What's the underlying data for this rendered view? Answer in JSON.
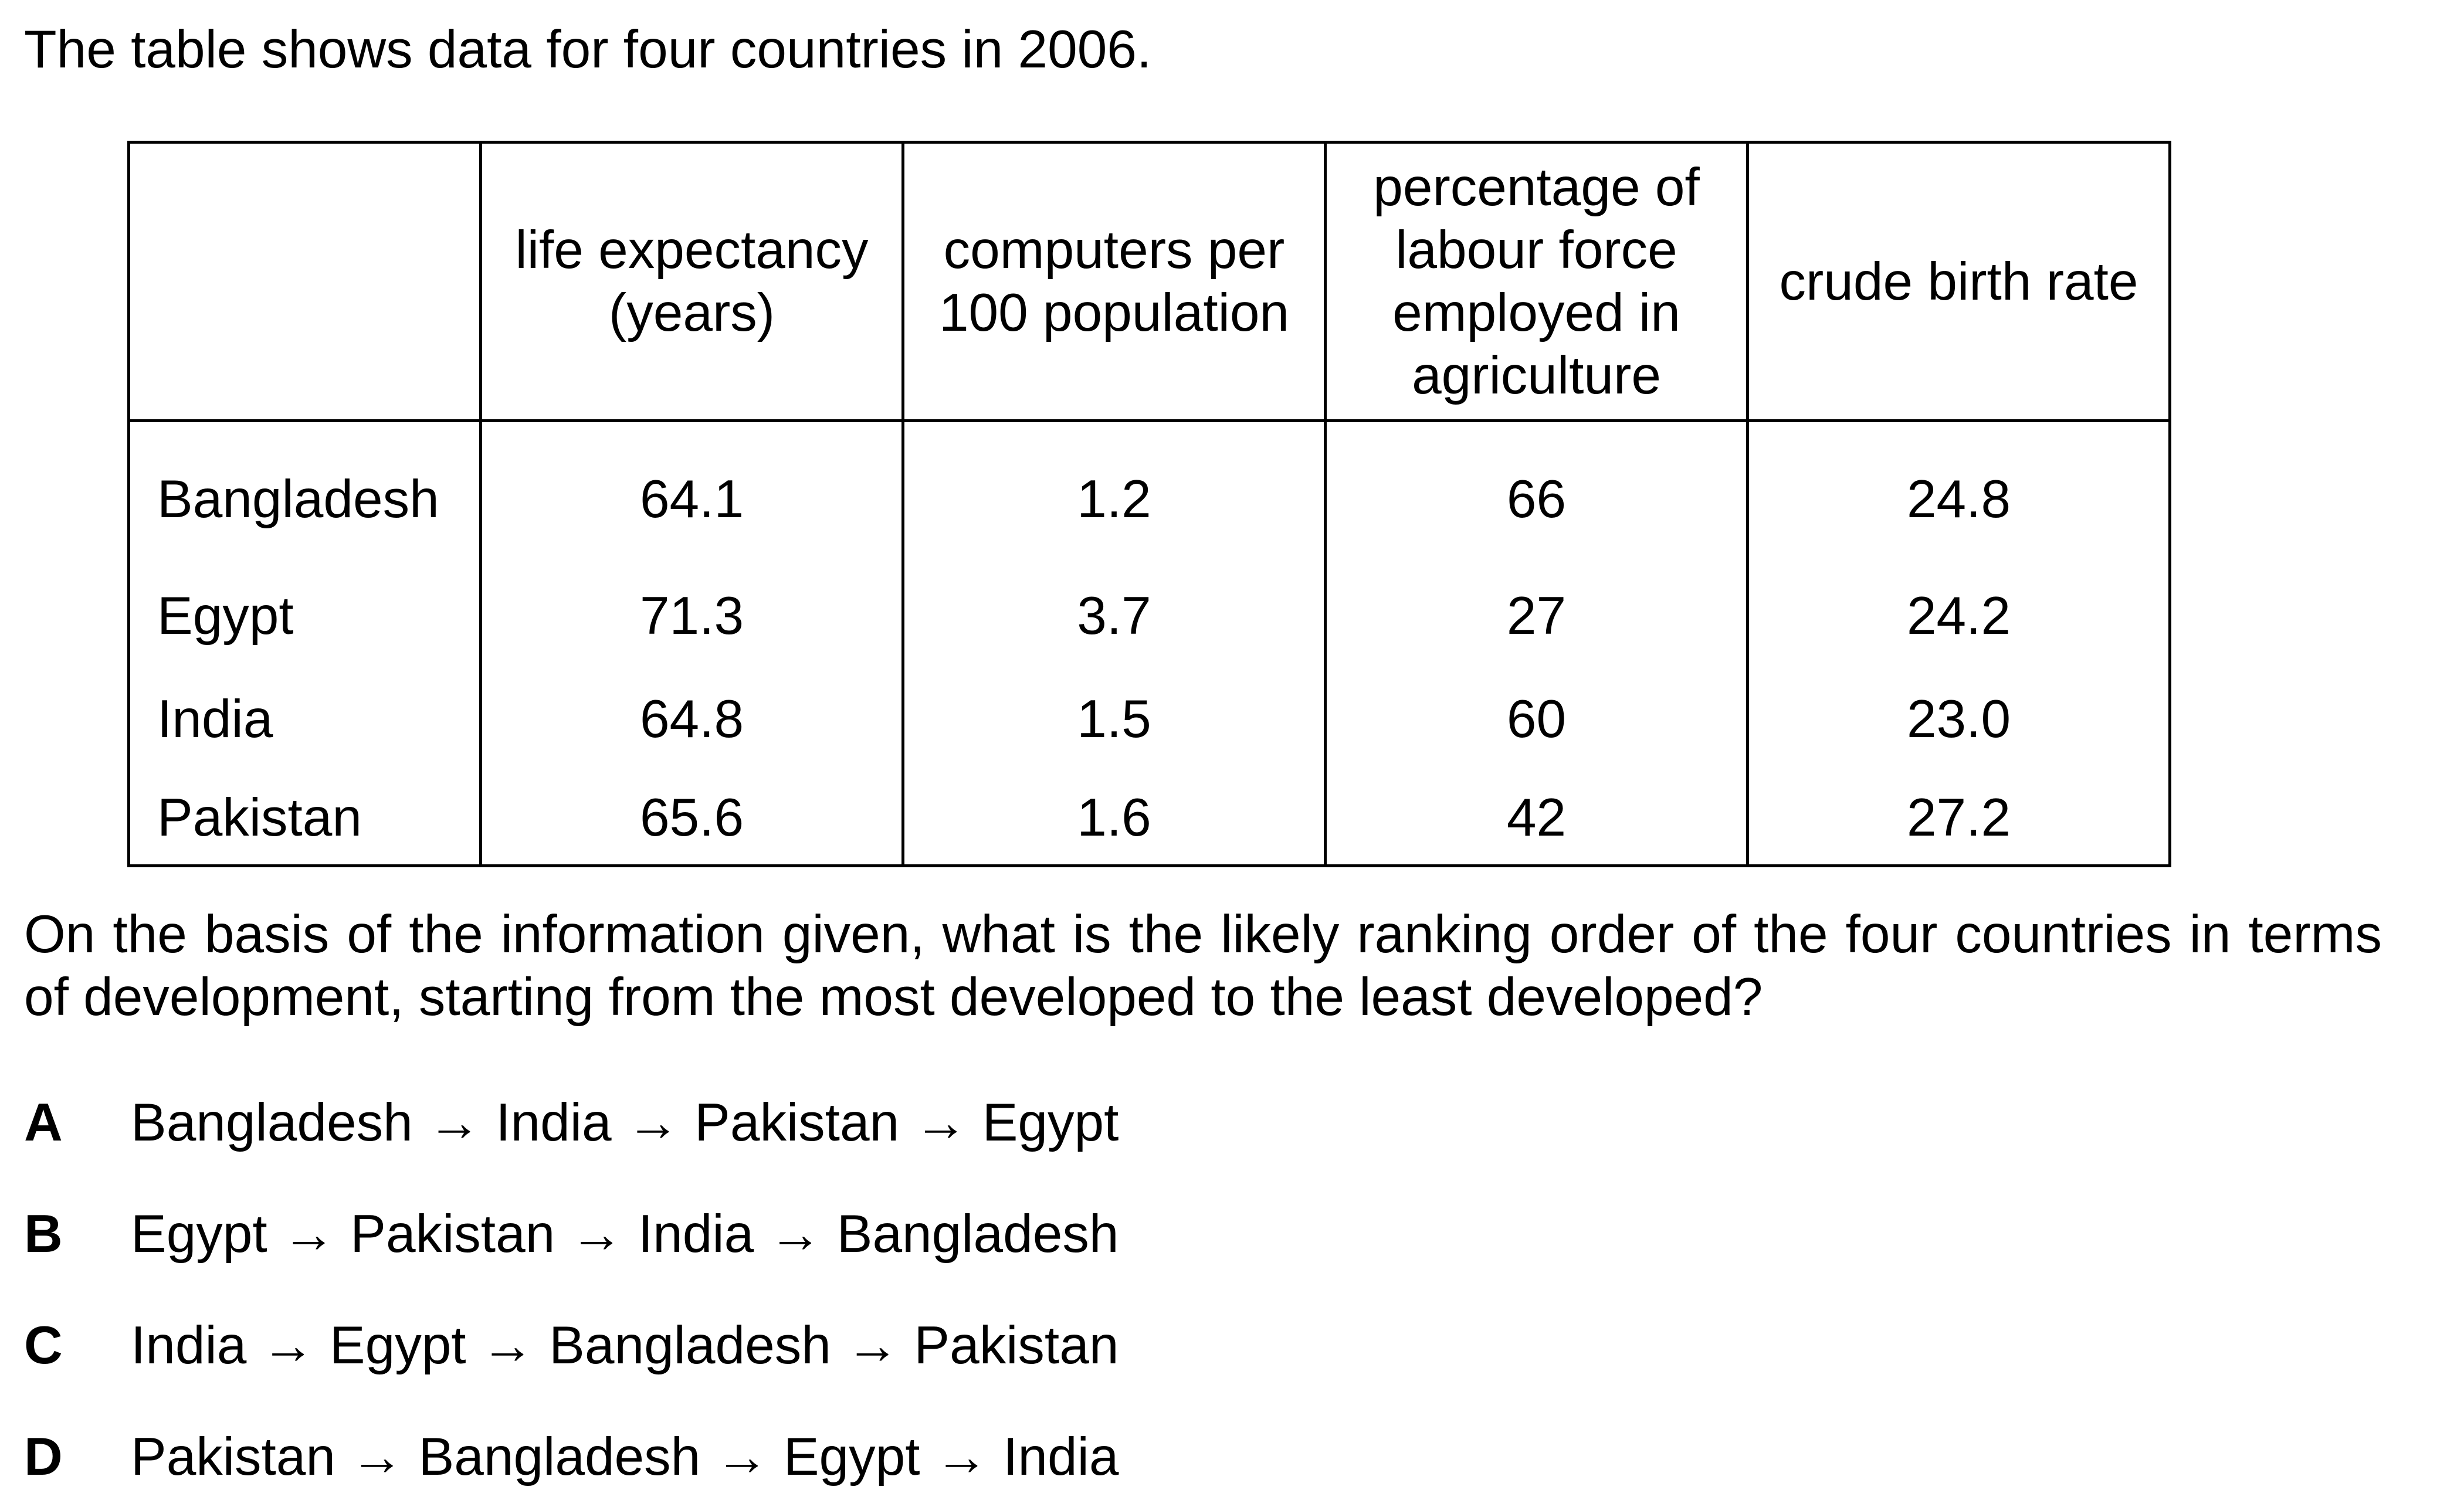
{
  "intro": "The table shows data for four countries in 2006.",
  "table": {
    "headers": [
      "",
      "life expectancy (years)",
      "computers per 100 population",
      "percentage of labour force employed in agriculture",
      "crude birth rate"
    ],
    "rows": [
      [
        "Bangladesh",
        "64.1",
        "1.2",
        "66",
        "24.8"
      ],
      [
        "Egypt",
        "71.3",
        "3.7",
        "27",
        "24.2"
      ],
      [
        "India",
        "64.8",
        "1.5",
        "60",
        "23.0"
      ],
      [
        "Pakistan",
        "65.6",
        "1.6",
        "42",
        "27.2"
      ]
    ]
  },
  "question": "On the basis of the information given, what is the likely ranking order of the four countries in terms of development, starting from the most developed to the least developed?",
  "options": [
    {
      "letter": "A",
      "text": "Bangladesh → India → Pakistan → Egypt"
    },
    {
      "letter": "B",
      "text": "Egypt → Pakistan → India → Bangladesh"
    },
    {
      "letter": "C",
      "text": "India → Egypt → Bangladesh → Pakistan"
    },
    {
      "letter": "D",
      "text": "Pakistan → Bangladesh → Egypt → India"
    }
  ]
}
